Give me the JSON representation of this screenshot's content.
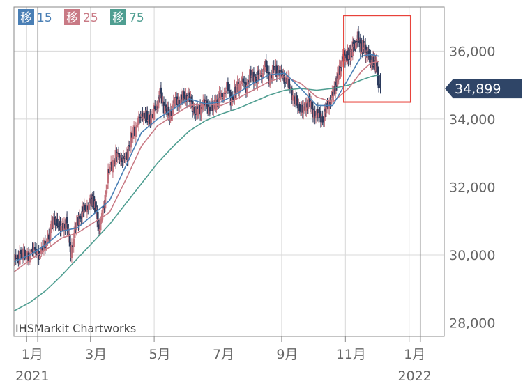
{
  "chart_data": {
    "type": "candlestick",
    "credit": "IHSMarkit Chartworks",
    "legend": [
      {
        "badge": "移",
        "label": "15",
        "color": "#4a7fb5"
      },
      {
        "badge": "移",
        "label": "25",
        "color": "#c97a85"
      },
      {
        "badge": "移",
        "label": "75",
        "color": "#4f9e91"
      }
    ],
    "y_ticks": [
      {
        "value": 36000,
        "label": "36,000"
      },
      {
        "value": 34000,
        "label": "34,000"
      },
      {
        "value": 32000,
        "label": "32,000"
      },
      {
        "value": 30000,
        "label": "30,000"
      },
      {
        "value": 28000,
        "label": "28,000"
      }
    ],
    "ylim": [
      27600,
      37300
    ],
    "xlim": [
      0,
      13.5
    ],
    "x_ticks": [
      {
        "t": 0.4,
        "label": "1月",
        "sub": "2021"
      },
      {
        "t": 2.4,
        "label": "3月",
        "sub": ""
      },
      {
        "t": 4.4,
        "label": "5月",
        "sub": ""
      },
      {
        "t": 6.4,
        "label": "7月",
        "sub": ""
      },
      {
        "t": 8.4,
        "label": "9月",
        "sub": ""
      },
      {
        "t": 10.4,
        "label": "11月",
        "sub": ""
      },
      {
        "t": 12.4,
        "label": "1月",
        "sub": "2022"
      }
    ],
    "year_lines": [
      0.75,
      12.75
    ],
    "current_price": {
      "value": 34899,
      "label": "34,899"
    },
    "colors": {
      "up": "#c4737d",
      "down": "#2b3a5c",
      "grid": "#d8d8d8",
      "axis": "#888888",
      "tag": "#2f4567",
      "highlight": "#e8423a"
    },
    "highlight_box": {
      "t0": 10.35,
      "t1": 12.45,
      "v0": 34500,
      "v1": 37050
    },
    "price_series": [
      [
        0.0,
        29850
      ],
      [
        0.2,
        30000
      ],
      [
        0.4,
        29950
      ],
      [
        0.6,
        30100
      ],
      [
        0.8,
        30050
      ],
      [
        1.0,
        30300
      ],
      [
        1.2,
        30900
      ],
      [
        1.35,
        31050
      ],
      [
        1.5,
        30700
      ],
      [
        1.65,
        31000
      ],
      [
        1.8,
        30100
      ],
      [
        1.95,
        30800
      ],
      [
        2.1,
        31200
      ],
      [
        2.25,
        31400
      ],
      [
        2.4,
        31500
      ],
      [
        2.5,
        31650
      ],
      [
        2.6,
        31200
      ],
      [
        2.7,
        30700
      ],
      [
        2.85,
        31600
      ],
      [
        3.0,
        32500
      ],
      [
        3.15,
        32800
      ],
      [
        3.3,
        33000
      ],
      [
        3.45,
        32700
      ],
      [
        3.6,
        33100
      ],
      [
        3.75,
        33600
      ],
      [
        3.9,
        33850
      ],
      [
        4.05,
        34200
      ],
      [
        4.2,
        34000
      ],
      [
        4.35,
        34100
      ],
      [
        4.5,
        34400
      ],
      [
        4.6,
        34700
      ],
      [
        4.75,
        34300
      ],
      [
        4.9,
        34100
      ],
      [
        5.05,
        34500
      ],
      [
        5.2,
        34550
      ],
      [
        5.35,
        34700
      ],
      [
        5.5,
        34650
      ],
      [
        5.65,
        34300
      ],
      [
        5.8,
        34150
      ],
      [
        5.95,
        34500
      ],
      [
        6.1,
        34350
      ],
      [
        6.25,
        34300
      ],
      [
        6.4,
        34600
      ],
      [
        6.55,
        34700
      ],
      [
        6.7,
        34900
      ],
      [
        6.85,
        34550
      ],
      [
        7.0,
        34900
      ],
      [
        7.15,
        35100
      ],
      [
        7.3,
        35000
      ],
      [
        7.45,
        35300
      ],
      [
        7.6,
        35200
      ],
      [
        7.75,
        35350
      ],
      [
        7.9,
        35500
      ],
      [
        8.05,
        35200
      ],
      [
        8.2,
        35500
      ],
      [
        8.35,
        35300
      ],
      [
        8.5,
        35250
      ],
      [
        8.65,
        35000
      ],
      [
        8.8,
        34600
      ],
      [
        8.95,
        34400
      ],
      [
        9.1,
        34200
      ],
      [
        9.25,
        34600
      ],
      [
        9.4,
        34200
      ],
      [
        9.55,
        34100
      ],
      [
        9.7,
        34050
      ],
      [
        9.85,
        34400
      ],
      [
        10.0,
        34650
      ],
      [
        10.1,
        35000
      ],
      [
        10.2,
        35300
      ],
      [
        10.3,
        35700
      ],
      [
        10.4,
        35900
      ],
      [
        10.5,
        35800
      ],
      [
        10.6,
        36050
      ],
      [
        10.7,
        36200
      ],
      [
        10.8,
        36350
      ],
      [
        10.9,
        36150
      ],
      [
        11.0,
        36100
      ],
      [
        11.1,
        35900
      ],
      [
        11.2,
        35800
      ],
      [
        11.3,
        35600
      ],
      [
        11.38,
        35700
      ],
      [
        11.45,
        34899
      ]
    ],
    "ma15": [
      [
        0.0,
        29800
      ],
      [
        0.5,
        30000
      ],
      [
        1.0,
        30300
      ],
      [
        1.5,
        30700
      ],
      [
        2.0,
        30800
      ],
      [
        2.5,
        31200
      ],
      [
        3.0,
        31600
      ],
      [
        3.5,
        32600
      ],
      [
        4.0,
        33600
      ],
      [
        4.5,
        34000
      ],
      [
        5.0,
        34300
      ],
      [
        5.5,
        34600
      ],
      [
        6.0,
        34450
      ],
      [
        6.5,
        34500
      ],
      [
        7.0,
        34750
      ],
      [
        7.5,
        35050
      ],
      [
        8.0,
        35300
      ],
      [
        8.5,
        35350
      ],
      [
        9.0,
        34900
      ],
      [
        9.5,
        34400
      ],
      [
        10.0,
        34400
      ],
      [
        10.5,
        35200
      ],
      [
        10.9,
        35850
      ],
      [
        11.2,
        35900
      ],
      [
        11.45,
        35850
      ]
    ],
    "ma25": [
      [
        0.0,
        29500
      ],
      [
        0.5,
        29850
      ],
      [
        1.0,
        30150
      ],
      [
        1.5,
        30500
      ],
      [
        2.0,
        30650
      ],
      [
        2.5,
        30950
      ],
      [
        3.0,
        31250
      ],
      [
        3.5,
        32200
      ],
      [
        4.0,
        33200
      ],
      [
        4.5,
        33800
      ],
      [
        5.0,
        34100
      ],
      [
        5.5,
        34400
      ],
      [
        6.0,
        34450
      ],
      [
        6.5,
        34400
      ],
      [
        7.0,
        34600
      ],
      [
        7.5,
        34850
      ],
      [
        8.0,
        35100
      ],
      [
        8.5,
        35250
      ],
      [
        9.0,
        35050
      ],
      [
        9.5,
        34650
      ],
      [
        10.0,
        34500
      ],
      [
        10.5,
        34900
      ],
      [
        10.9,
        35400
      ],
      [
        11.2,
        35650
      ],
      [
        11.45,
        35700
      ]
    ],
    "ma75": [
      [
        0.0,
        28350
      ],
      [
        0.5,
        28600
      ],
      [
        1.0,
        28950
      ],
      [
        1.5,
        29400
      ],
      [
        2.0,
        29900
      ],
      [
        2.5,
        30400
      ],
      [
        3.0,
        30900
      ],
      [
        3.5,
        31500
      ],
      [
        4.0,
        32100
      ],
      [
        4.5,
        32700
      ],
      [
        5.0,
        33200
      ],
      [
        5.5,
        33650
      ],
      [
        6.0,
        33950
      ],
      [
        6.5,
        34150
      ],
      [
        7.0,
        34300
      ],
      [
        7.5,
        34500
      ],
      [
        8.0,
        34700
      ],
      [
        8.5,
        34850
      ],
      [
        9.0,
        34900
      ],
      [
        9.5,
        34850
      ],
      [
        10.0,
        34900
      ],
      [
        10.5,
        35000
      ],
      [
        10.9,
        35150
      ],
      [
        11.2,
        35250
      ],
      [
        11.45,
        35300
      ]
    ]
  }
}
